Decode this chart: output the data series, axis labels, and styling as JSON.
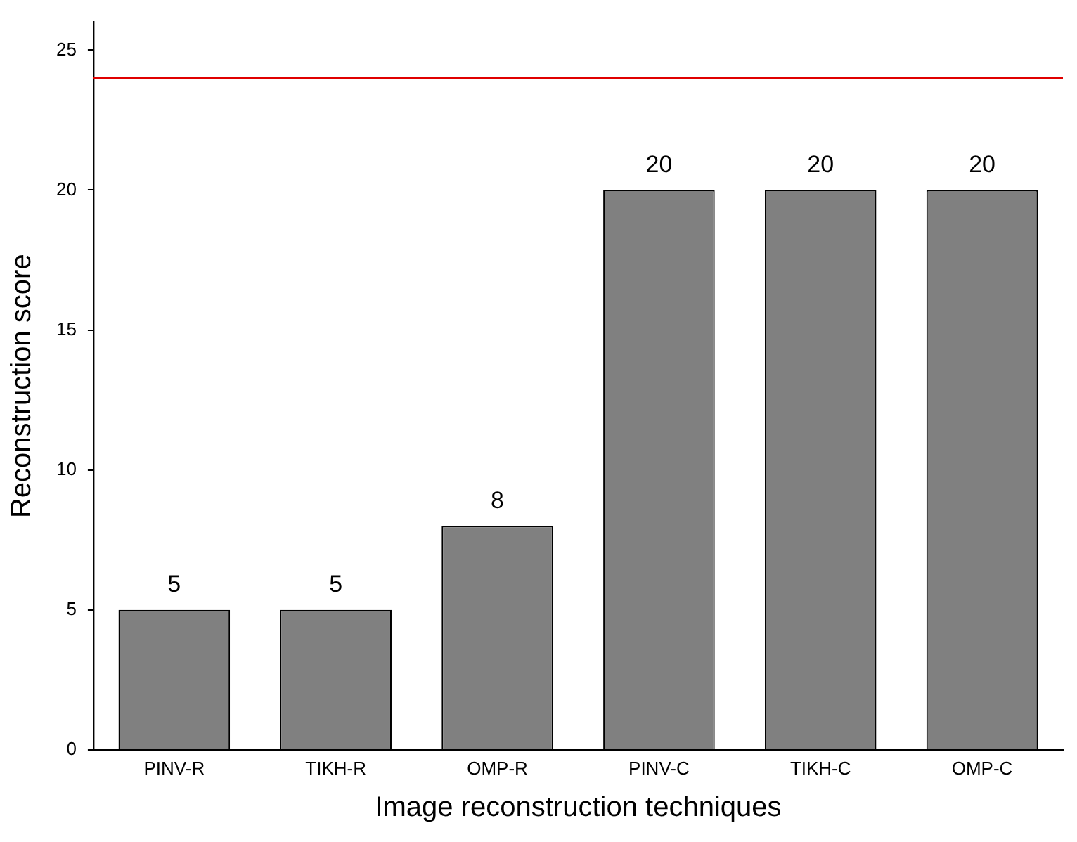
{
  "chart_data": {
    "type": "bar",
    "xlabel": "Image reconstruction techniques",
    "ylabel": "Reconstruction score",
    "categories": [
      "PINV-R",
      "TIKH-R",
      "OMP-R",
      "PINV-C",
      "TIKH-C",
      "OMP-C"
    ],
    "values": [
      5,
      5,
      8,
      20,
      20,
      20
    ],
    "color": "#808080",
    "ylim": [
      0,
      26
    ],
    "yticks": [
      0,
      5,
      10,
      15,
      20,
      25
    ],
    "grid": false,
    "legend": false,
    "data_labels": true,
    "ref_lines": [
      {
        "axis": "y",
        "value": 24,
        "color": "#e00000"
      }
    ]
  }
}
